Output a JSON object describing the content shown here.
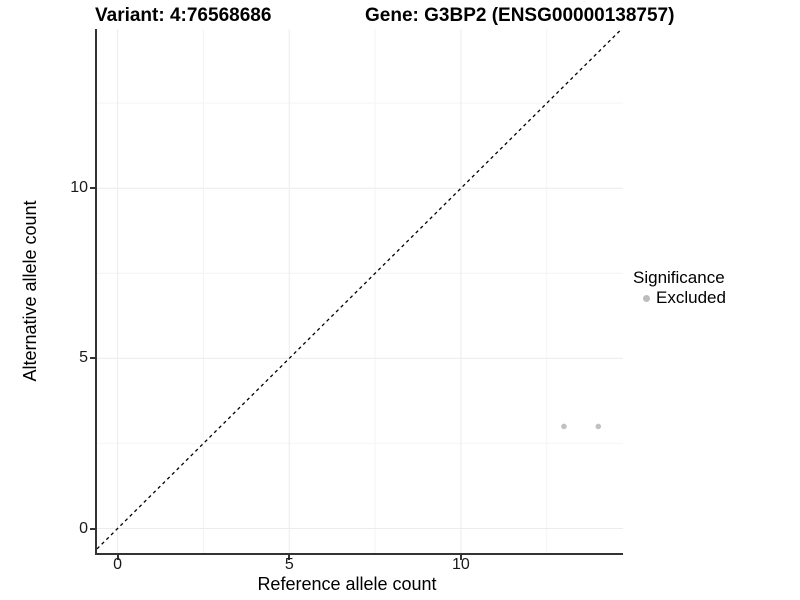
{
  "chart_data": {
    "type": "scatter",
    "titles": {
      "left": "Variant: 4:76568686",
      "right": "Gene: G3BP2 (ENSG00000138757)"
    },
    "xlabel": "Reference allele count",
    "ylabel": "Alternative allele count",
    "xlim": [
      -0.6,
      14.72
    ],
    "ylim": [
      -0.72,
      14.68
    ],
    "x_ticks": [
      0,
      5,
      10
    ],
    "y_ticks": [
      0,
      5,
      10
    ],
    "x_minor_gridlines": [
      2.5,
      7.5,
      12.5
    ],
    "y_minor_gridlines": [
      2.5,
      7.5,
      12.5
    ],
    "grid": "major+minor",
    "identity_line": {
      "shown": true,
      "style": "dashed",
      "color": "#000000",
      "equation": "y = x"
    },
    "series": [
      {
        "name": "Excluded",
        "color": "#c1c1c1",
        "points": [
          [
            13,
            3
          ],
          [
            14,
            3
          ]
        ]
      }
    ],
    "legend": {
      "title": "Significance",
      "position": "right",
      "items": [
        {
          "label": "Excluded",
          "color": "#bdbdbd"
        }
      ]
    },
    "colors": {
      "background": "#ffffff",
      "grid_major": "#ececec",
      "grid_minor": "#f4f4f4",
      "axis_line": "#333333",
      "tick_label": "#1a1a1a"
    }
  }
}
